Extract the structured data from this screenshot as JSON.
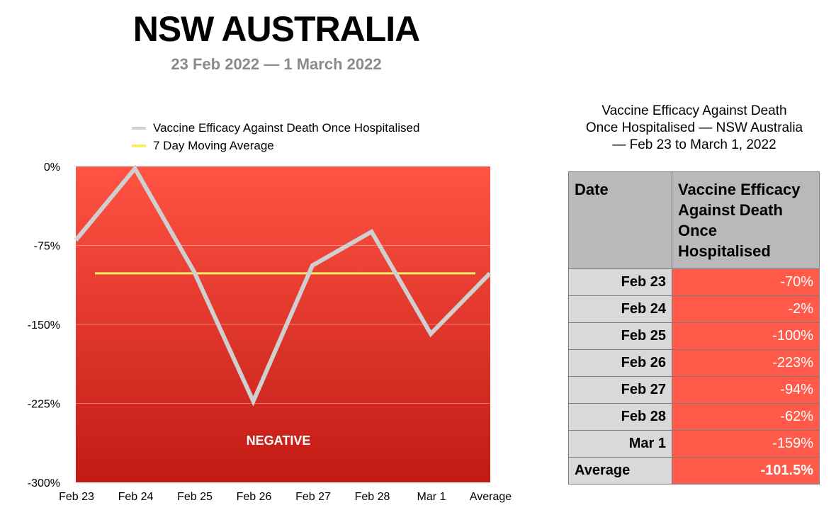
{
  "header": {
    "title": "NSW AUSTRALIA",
    "subtitle": "23 Feb 2022 — 1 March 2022"
  },
  "colors": {
    "efficacy_line": "#cfcfcf",
    "average_line": "#f5ee6a",
    "plot_top": "#ff5444",
    "plot_bottom": "#c21a14",
    "table_header": "#b9b9b9",
    "table_date_cell": "#d9d9d9",
    "table_value_cell": "#ff5a4a"
  },
  "chart_data": {
    "type": "line",
    "categories": [
      "Feb 23",
      "Feb 24",
      "Feb 25",
      "Feb 26",
      "Feb 27",
      "Feb 28",
      "Mar 1",
      "Average"
    ],
    "series": [
      {
        "name": "Vaccine Efficacy Against Death Once Hospitalised",
        "values": [
          -70,
          -2,
          -100,
          -223,
          -94,
          -62,
          -159,
          -101.5
        ]
      },
      {
        "name": "7 Day Moving Average",
        "values": [
          -101.5,
          -101.5,
          -101.5,
          -101.5,
          -101.5,
          -101.5,
          -101.5,
          -101.5
        ]
      }
    ],
    "yticks": [
      "0%",
      "-75%",
      "-150%",
      "-225%",
      "-300%"
    ],
    "ylim": [
      -300,
      0
    ],
    "grid": true,
    "legend": "top",
    "annotation": "NEGATIVE"
  },
  "table": {
    "caption_lines": [
      "Vaccine Efficacy Against Death",
      "Once Hospitalised — NSW Australia",
      "— Feb 23 to March 1, 2022"
    ],
    "headers": [
      "Date",
      "Vaccine Efficacy Against Death Once Hospitalised"
    ],
    "rows": [
      {
        "date": "Feb 23",
        "value": "-70%"
      },
      {
        "date": "Feb 24",
        "value": "-2%"
      },
      {
        "date": "Feb 25",
        "value": "-100%"
      },
      {
        "date": "Feb 26",
        "value": "-223%"
      },
      {
        "date": "Feb 27",
        "value": "-94%"
      },
      {
        "date": "Feb 28",
        "value": "-62%"
      },
      {
        "date": "Mar 1",
        "value": "-159%"
      },
      {
        "date": "Average",
        "value": "-101.5%"
      }
    ]
  }
}
